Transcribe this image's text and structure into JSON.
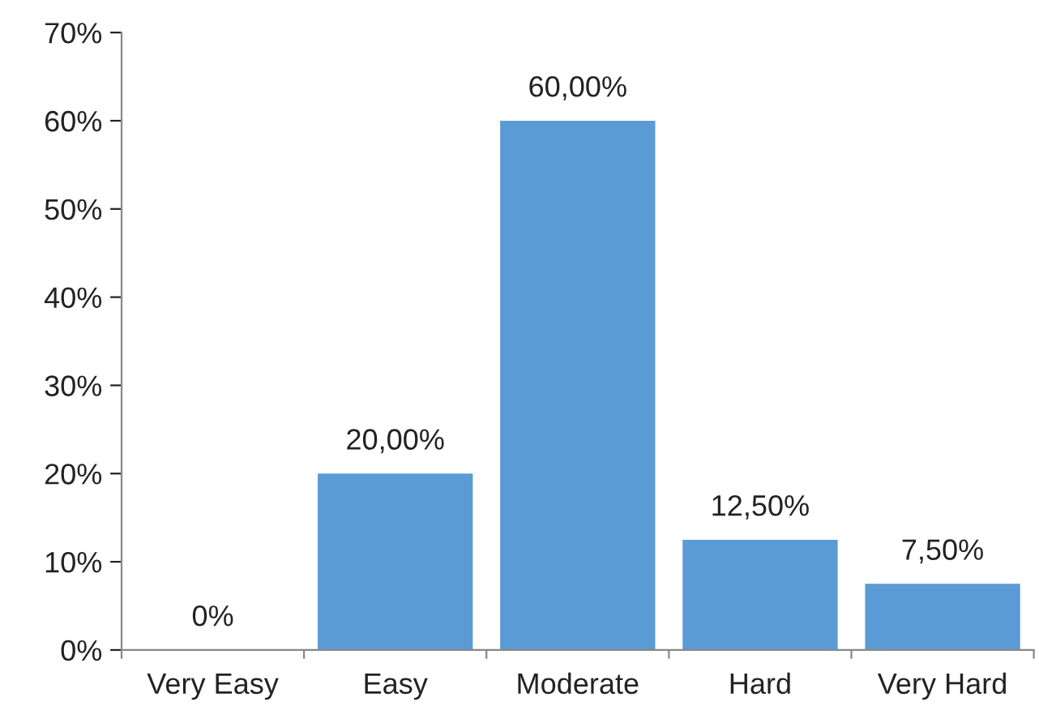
{
  "chart_data": {
    "type": "bar",
    "categories": [
      "Very Easy",
      "Easy",
      "Moderate",
      "Hard",
      "Very Hard"
    ],
    "values": [
      0,
      20,
      60,
      12.5,
      7.5
    ],
    "value_labels": [
      "0%",
      "20,00%",
      "60,00%",
      "12,50%",
      "7,50%"
    ],
    "color": "#5b9bd5",
    "ylim": [
      0,
      70
    ],
    "yticks": [
      {
        "value": 0,
        "label": "0%"
      },
      {
        "value": 10,
        "label": "10%"
      },
      {
        "value": 20,
        "label": "20%"
      },
      {
        "value": 30,
        "label": "30%"
      },
      {
        "value": 40,
        "label": "40%"
      },
      {
        "value": 50,
        "label": "50%"
      },
      {
        "value": 60,
        "label": "60%"
      },
      {
        "value": 70,
        "label": "70%"
      }
    ],
    "grid": false,
    "legend": false
  }
}
